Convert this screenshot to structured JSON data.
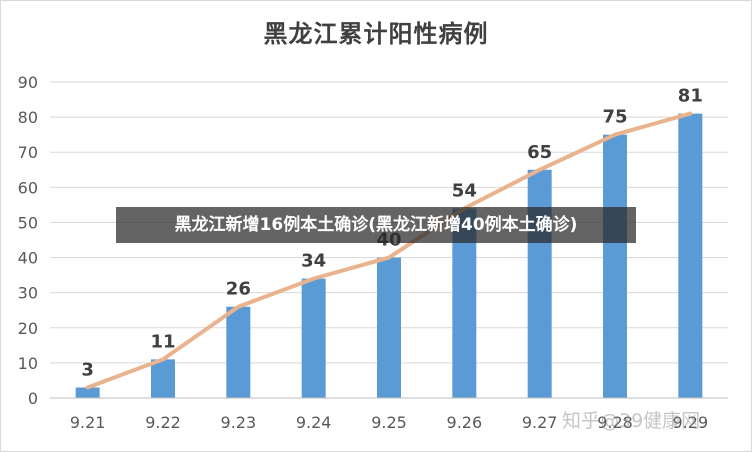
{
  "chart_data": {
    "type": "bar",
    "title": "黑龙江累计阳性病例",
    "xlabel": "",
    "ylabel": "",
    "categories": [
      "9.21",
      "9.22",
      "9.23",
      "9.24",
      "9.25",
      "9.26",
      "9.27",
      "9.28",
      "9.29"
    ],
    "values": [
      3,
      11,
      26,
      34,
      40,
      54,
      65,
      75,
      81
    ],
    "data_labels": [
      "3",
      "11",
      "26",
      "34",
      "40",
      "54",
      "65",
      "75",
      "81"
    ],
    "ylim": [
      0,
      90
    ],
    "yticks": [
      "0",
      "10",
      "20",
      "30",
      "40",
      "50",
      "60",
      "70",
      "80",
      "90"
    ],
    "grid": true,
    "legend": "none",
    "overlay_line": {
      "values": [
        3,
        11,
        26,
        34,
        40,
        54,
        65,
        75,
        81
      ]
    },
    "colors": {
      "bar": "#5b9bd5",
      "line": "#e9b38d",
      "grid": "#d9d9d9",
      "text": "#404040"
    }
  },
  "caption": "黑龙江新增16例本土确诊(黑龙江新增40例本土确诊)",
  "watermark": "知乎@39健康网"
}
